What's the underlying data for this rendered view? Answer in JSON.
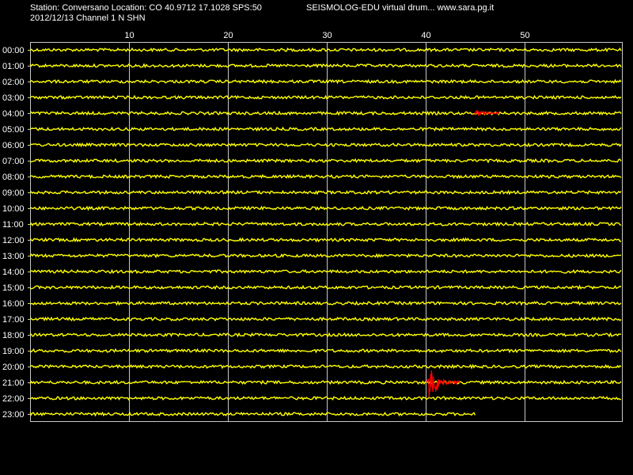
{
  "header": {
    "station_line": "Station: Conversano Location: CO 40.9712 17.1028 SPS:50",
    "date_line": "2012/12/13  Channel 1 N SHN",
    "software_line": "SEISMOLOG-EDU virtual drum... www.sara.pg.it"
  },
  "chart_data": {
    "type": "line",
    "title": "",
    "xlabel": "",
    "ylabel": "",
    "x_ticks": [
      10,
      20,
      30,
      40,
      50
    ],
    "xlim": [
      0,
      60
    ],
    "grid": true,
    "rows": [
      "00:00",
      "01:00",
      "02:00",
      "03:00",
      "04:00",
      "05:00",
      "06:00",
      "07:00",
      "08:00",
      "09:00",
      "10:00",
      "11:00",
      "12:00",
      "13:00",
      "14:00",
      "15:00",
      "16:00",
      "17:00",
      "18:00",
      "19:00",
      "20:00",
      "21:00",
      "22:00",
      "23:00"
    ],
    "trace_end_minute": 45,
    "trace_end_row": "23:00",
    "colors": {
      "background": "#000000",
      "trace": "#ffff00",
      "event": "#ff0000",
      "grid": "#c8c8c8",
      "text": "#ffffff"
    },
    "events": [
      {
        "row": "04:00",
        "start_minute": 44.9,
        "end_minute": 47.5,
        "peak_amplitude": 0.5,
        "color": "#ff0000"
      },
      {
        "row": "21:00",
        "start_minute": 40.1,
        "end_minute": 43.5,
        "peak_amplitude": 2.9,
        "color": "#ff0000"
      }
    ]
  }
}
